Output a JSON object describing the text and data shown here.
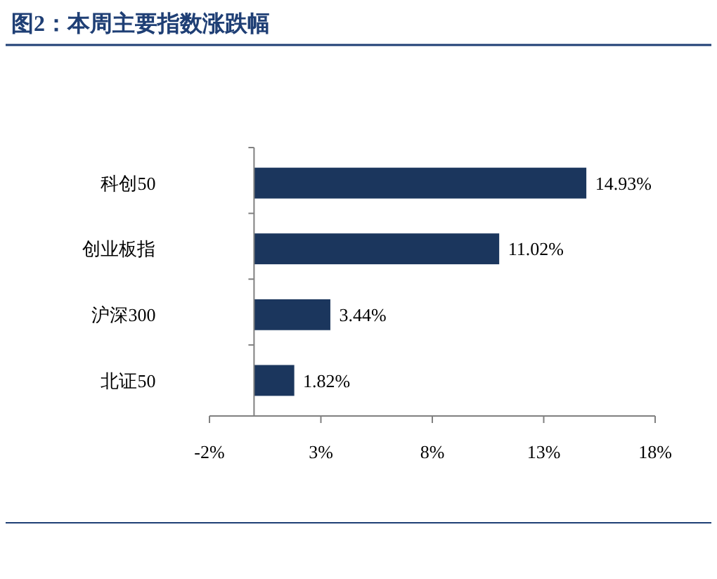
{
  "chart_data": {
    "type": "bar",
    "orientation": "horizontal",
    "title": "图2：本周主要指数涨跌幅",
    "categories": [
      "科创50",
      "创业板指",
      "沪深300",
      "北证50"
    ],
    "values": [
      14.93,
      11.02,
      3.44,
      1.82
    ],
    "color": "#1b365d",
    "value_labels": [
      "14.93%",
      "11.02%",
      "3.44%",
      "1.82%"
    ],
    "xlim": [
      -2,
      18
    ],
    "xticks": [
      {
        "value": -2,
        "label": "-2%"
      },
      {
        "value": 3,
        "label": "3%"
      },
      {
        "value": 8,
        "label": "8%"
      },
      {
        "value": 13,
        "label": "13%"
      },
      {
        "value": 18,
        "label": "18%"
      }
    ],
    "grid": false
  }
}
